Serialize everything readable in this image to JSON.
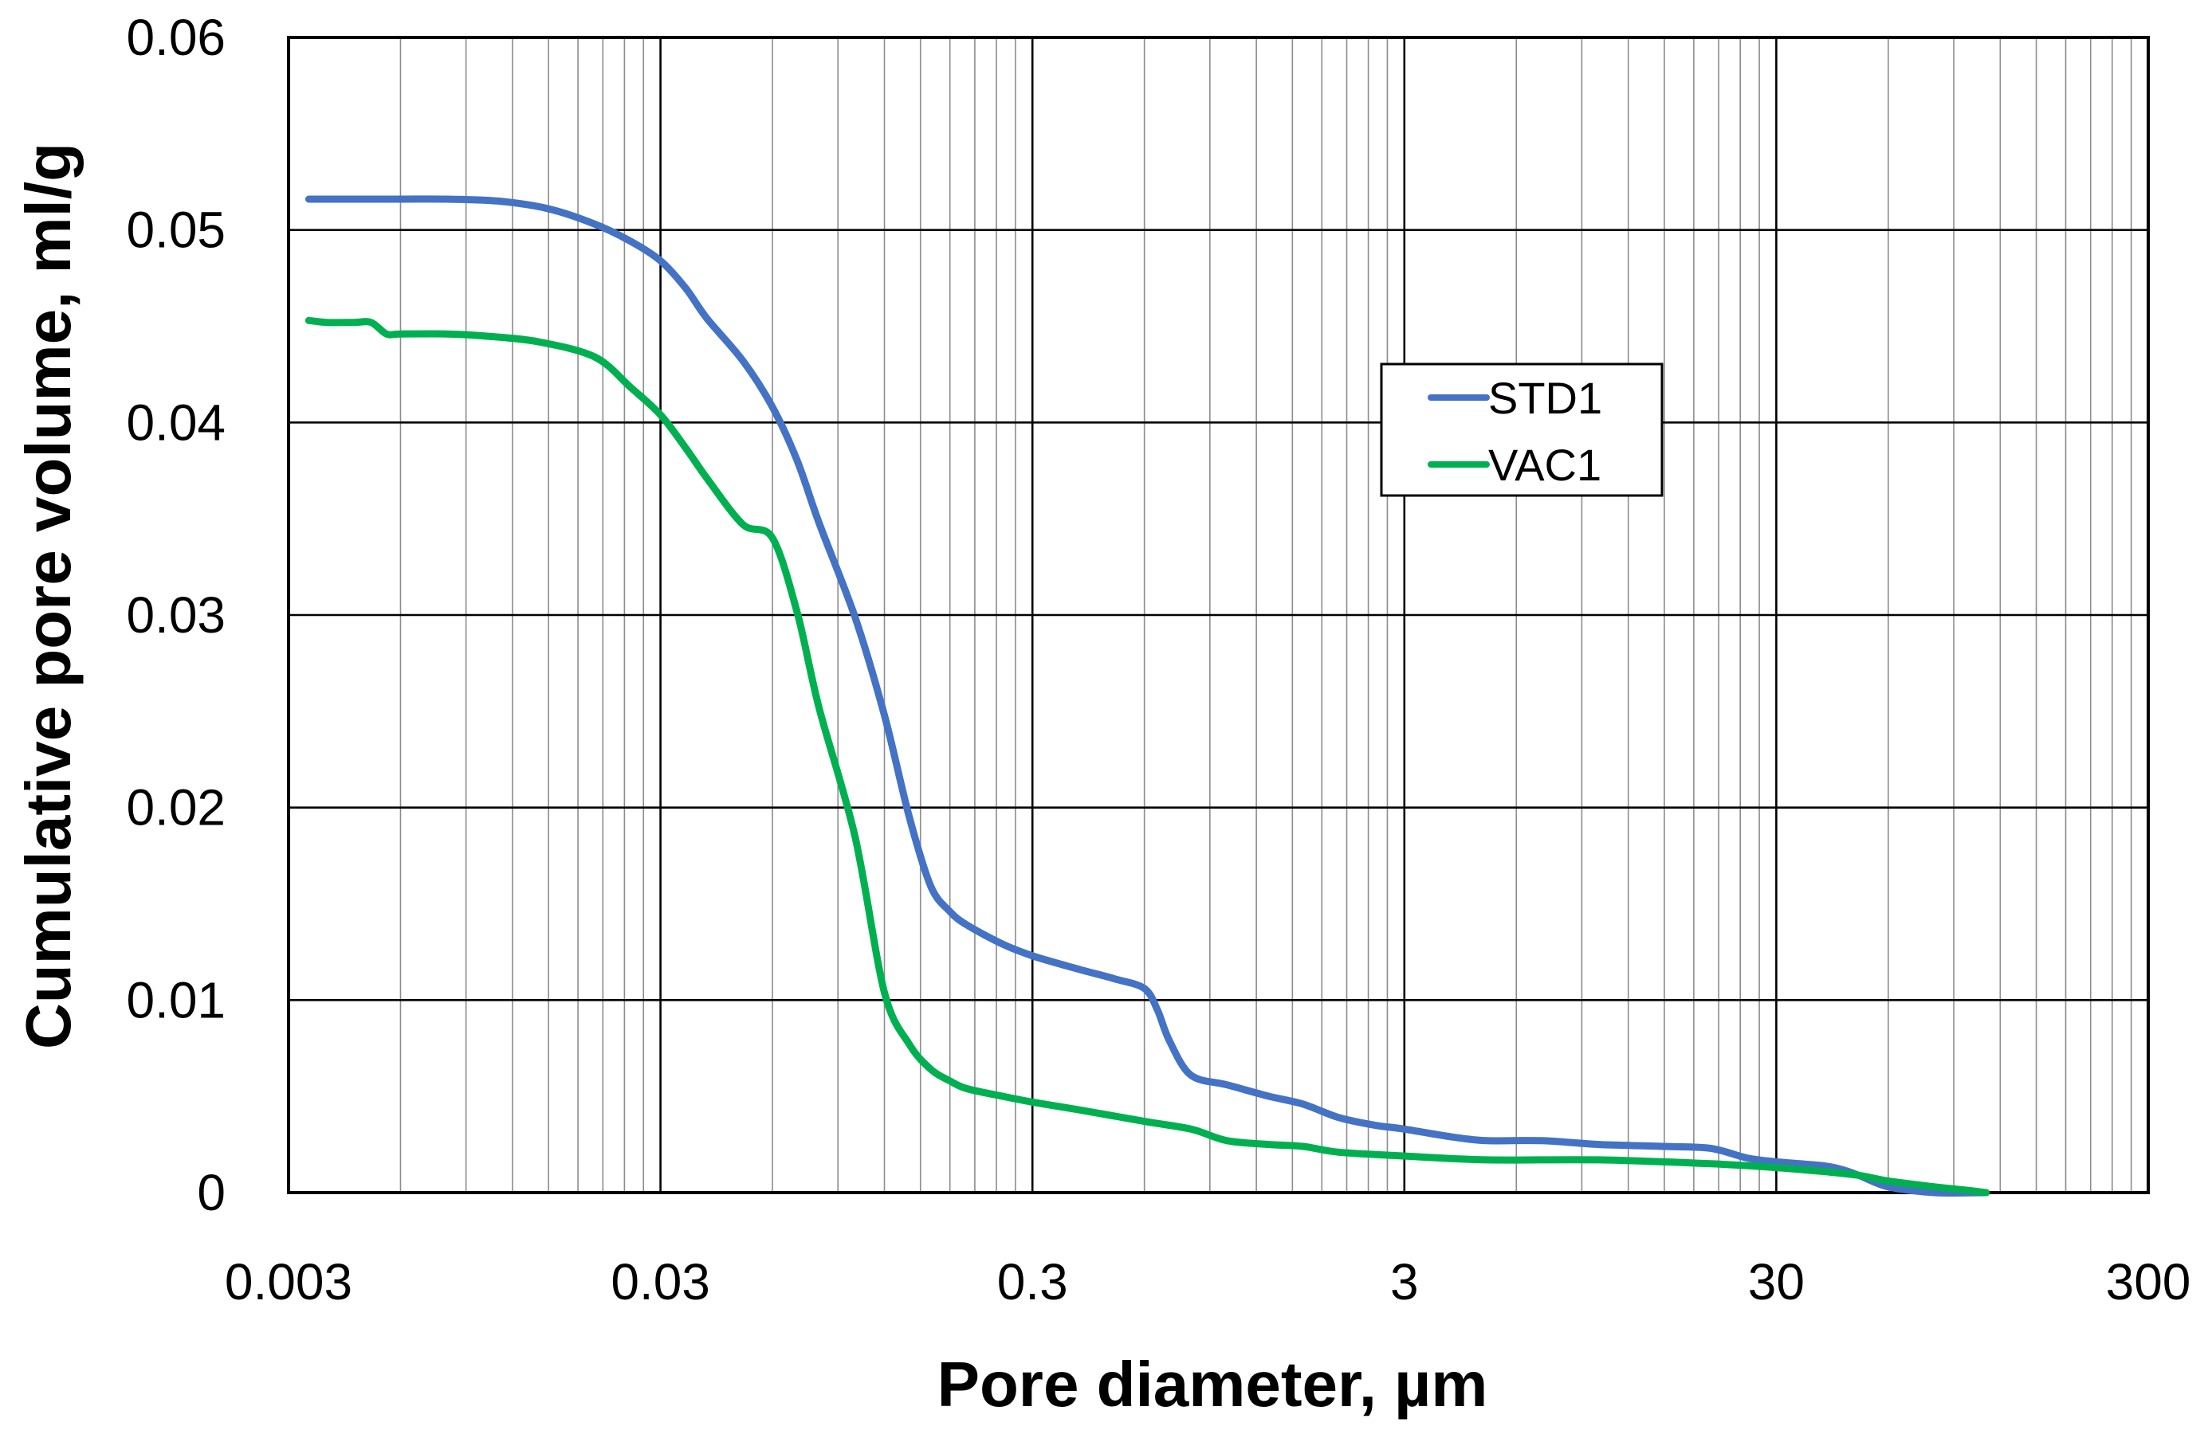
{
  "chart_data": {
    "type": "line",
    "title": "",
    "xlabel": "Pore diameter, µm",
    "ylabel": "Cumulative pore volume, ml/g",
    "x_scale": "log",
    "xlim": [
      0.003,
      300
    ],
    "ylim": [
      0,
      0.06
    ],
    "x_ticks": [
      0.003,
      0.03,
      0.3,
      3,
      30,
      300
    ],
    "x_tick_labels": [
      "0.003",
      "0.03",
      "0.3",
      "3",
      "30",
      "300"
    ],
    "y_ticks": [
      0,
      0.01,
      0.02,
      0.03,
      0.04,
      0.05,
      0.06
    ],
    "y_tick_labels": [
      "0",
      "0.01",
      "0.02",
      "0.03",
      "0.04",
      "0.05",
      "0.06"
    ],
    "grid": true,
    "minor_grid": true,
    "legend_position": "center-right",
    "series": [
      {
        "name": "STD1",
        "color": "#4472C4",
        "x": [
          0.0034,
          0.0045,
          0.006,
          0.008,
          0.011,
          0.015,
          0.02,
          0.025,
          0.03,
          0.035,
          0.04,
          0.05,
          0.06,
          0.07,
          0.08,
          0.1,
          0.12,
          0.14,
          0.16,
          0.18,
          0.2,
          0.25,
          0.3,
          0.4,
          0.5,
          0.6,
          0.65,
          0.7,
          0.8,
          1.0,
          1.3,
          1.6,
          2.0,
          2.5,
          3.0,
          4.0,
          5.0,
          7.0,
          10,
          15,
          20,
          25,
          30,
          40,
          45,
          50,
          60,
          80,
          110
        ],
        "y": [
          0.0516,
          0.0516,
          0.0516,
          0.0516,
          0.0515,
          0.0511,
          0.0503,
          0.0494,
          0.0484,
          0.047,
          0.0454,
          0.0432,
          0.0408,
          0.038,
          0.0348,
          0.0299,
          0.0248,
          0.0195,
          0.0159,
          0.0146,
          0.0139,
          0.0129,
          0.0123,
          0.0116,
          0.0111,
          0.0106,
          0.0095,
          0.0079,
          0.0061,
          0.0056,
          0.005,
          0.0046,
          0.0039,
          0.0035,
          0.0033,
          0.0029,
          0.0027,
          0.0027,
          0.0025,
          0.0024,
          0.0023,
          0.0018,
          0.0016,
          0.0014,
          0.0012,
          0.0009,
          0.0003,
          0.0,
          0.0
        ]
      },
      {
        "name": "VAC1",
        "color": "#00B050",
        "x": [
          0.0034,
          0.0038,
          0.0045,
          0.005,
          0.0055,
          0.006,
          0.008,
          0.01,
          0.014,
          0.02,
          0.025,
          0.03,
          0.035,
          0.04,
          0.05,
          0.06,
          0.07,
          0.08,
          0.1,
          0.12,
          0.14,
          0.16,
          0.18,
          0.2,
          0.25,
          0.3,
          0.4,
          0.6,
          0.8,
          1.0,
          1.3,
          1.6,
          2.0,
          3.0,
          5.0,
          10,
          20,
          30,
          40,
          50,
          60,
          80,
          100,
          110
        ],
        "y": [
          0.0453,
          0.0452,
          0.0452,
          0.0452,
          0.0446,
          0.0446,
          0.0446,
          0.0445,
          0.0442,
          0.0434,
          0.0418,
          0.0404,
          0.0387,
          0.0371,
          0.0347,
          0.034,
          0.0301,
          0.0252,
          0.0185,
          0.0104,
          0.0077,
          0.0064,
          0.0058,
          0.0054,
          0.005,
          0.0047,
          0.0043,
          0.0037,
          0.0033,
          0.0027,
          0.0025,
          0.0024,
          0.0021,
          0.0019,
          0.0017,
          0.0017,
          0.0015,
          0.0013,
          0.0011,
          0.0009,
          0.0006,
          0.0003,
          0.0001,
          0.0
        ]
      }
    ]
  }
}
